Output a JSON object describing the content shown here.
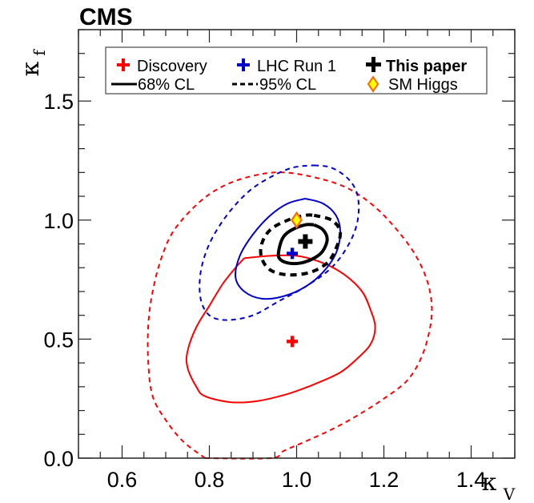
{
  "chart_data": {
    "type": "contour",
    "experiment_label": "CMS",
    "xlabel": "κ",
    "xlabel_sub": "V",
    "ylabel": "κ",
    "ylabel_sub": "f",
    "xlim": [
      0.5,
      1.5
    ],
    "ylim": [
      0.0,
      1.8
    ],
    "x_major_ticks": [
      0.6,
      0.8,
      1.0,
      1.2,
      1.4
    ],
    "x_tick_labels": [
      "0.6",
      "0.8",
      "1.0",
      "1.2",
      "1.4"
    ],
    "x_minor_step": 0.05,
    "y_major_ticks": [
      0.0,
      0.5,
      1.0,
      1.5
    ],
    "y_tick_labels": [
      "0.0",
      "0.5",
      "1.0",
      "1.5"
    ],
    "y_minor_step": 0.1,
    "grid": false,
    "legend": {
      "placement": "top",
      "entries": [
        {
          "label": "Discovery",
          "marker": "cross",
          "color": "#ff0000"
        },
        {
          "label": "LHC Run 1",
          "marker": "cross",
          "color": "#0000cc"
        },
        {
          "label": "This paper",
          "marker": "cross",
          "color": "#000000",
          "bold": true
        },
        {
          "label": "68% CL",
          "line": "solid",
          "color": "#000000"
        },
        {
          "label": "95% CL",
          "line": "dashed",
          "color": "#000000"
        },
        {
          "label": "SM Higgs",
          "marker": "diamond",
          "color": "#ffff00",
          "edge": "#ff6600"
        }
      ]
    },
    "colors": {
      "discovery": "#ff0000",
      "run1": "#0000cc",
      "this_paper": "#000000",
      "sm_fill": "#ffff00",
      "sm_edge": "#ff6600"
    },
    "best_fit": [
      {
        "name": "Discovery",
        "x": 0.99,
        "y": 0.49
      },
      {
        "name": "LHC Run 1",
        "x": 0.99,
        "y": 0.86
      },
      {
        "name": "This paper",
        "x": 1.02,
        "y": 0.91
      }
    ],
    "sm_point": {
      "name": "SM Higgs",
      "x": 1.0,
      "y": 1.0
    },
    "contours": [
      {
        "name": "Discovery 68% CL",
        "series": "discovery",
        "cl": "68%",
        "style": "solid",
        "points": [
          [
            0.88,
            0.84
          ],
          [
            0.94,
            0.85
          ],
          [
            1.0,
            0.85
          ],
          [
            1.06,
            0.82
          ],
          [
            1.11,
            0.77
          ],
          [
            1.15,
            0.7
          ],
          [
            1.17,
            0.62
          ],
          [
            1.18,
            0.55
          ],
          [
            1.17,
            0.48
          ],
          [
            1.14,
            0.42
          ],
          [
            1.1,
            0.36
          ],
          [
            1.04,
            0.31
          ],
          [
            0.98,
            0.27
          ],
          [
            0.91,
            0.24
          ],
          [
            0.85,
            0.235
          ],
          [
            0.79,
            0.26
          ],
          [
            0.77,
            0.3
          ],
          [
            0.75,
            0.38
          ],
          [
            0.75,
            0.45
          ],
          [
            0.77,
            0.55
          ],
          [
            0.8,
            0.64
          ],
          [
            0.83,
            0.73
          ],
          [
            0.86,
            0.8
          ],
          [
            0.88,
            0.84
          ]
        ]
      },
      {
        "name": "Discovery 95% CL",
        "series": "discovery",
        "cl": "95%",
        "style": "dashed",
        "points": [
          [
            0.79,
            0.0
          ],
          [
            0.94,
            0.0
          ],
          [
            0.97,
            0.03
          ],
          [
            1.02,
            0.07
          ],
          [
            1.08,
            0.12
          ],
          [
            1.14,
            0.18
          ],
          [
            1.2,
            0.25
          ],
          [
            1.25,
            0.32
          ],
          [
            1.28,
            0.4
          ],
          [
            1.3,
            0.5
          ],
          [
            1.31,
            0.62
          ],
          [
            1.3,
            0.74
          ],
          [
            1.27,
            0.86
          ],
          [
            1.22,
            0.98
          ],
          [
            1.17,
            1.07
          ],
          [
            1.11,
            1.14
          ],
          [
            1.04,
            1.18
          ],
          [
            0.97,
            1.2
          ],
          [
            0.91,
            1.19
          ],
          [
            0.84,
            1.15
          ],
          [
            0.78,
            1.08
          ],
          [
            0.72,
            0.96
          ],
          [
            0.69,
            0.84
          ],
          [
            0.67,
            0.7
          ],
          [
            0.66,
            0.56
          ],
          [
            0.66,
            0.4
          ],
          [
            0.67,
            0.26
          ],
          [
            0.7,
            0.16
          ],
          [
            0.74,
            0.07
          ],
          [
            0.79,
            0.0
          ]
        ]
      },
      {
        "name": "LHC Run 1 68% CL",
        "series": "run1",
        "cl": "68%",
        "style": "solid",
        "points": [
          [
            1.02,
            1.09
          ],
          [
            1.06,
            1.07
          ],
          [
            1.09,
            1.02
          ],
          [
            1.1,
            0.95
          ],
          [
            1.09,
            0.86
          ],
          [
            1.06,
            0.78
          ],
          [
            1.02,
            0.72
          ],
          [
            0.97,
            0.68
          ],
          [
            0.92,
            0.67
          ],
          [
            0.88,
            0.7
          ],
          [
            0.86,
            0.76
          ],
          [
            0.87,
            0.85
          ],
          [
            0.9,
            0.94
          ],
          [
            0.94,
            1.02
          ],
          [
            0.98,
            1.07
          ],
          [
            1.02,
            1.09
          ]
        ]
      },
      {
        "name": "LHC Run 1 95% CL",
        "series": "run1",
        "cl": "95%",
        "style": "dashed",
        "points": [
          [
            1.04,
            1.23
          ],
          [
            1.08,
            1.22
          ],
          [
            1.12,
            1.17
          ],
          [
            1.14,
            1.1
          ],
          [
            1.14,
            1.0
          ],
          [
            1.12,
            0.9
          ],
          [
            1.08,
            0.8
          ],
          [
            1.02,
            0.72
          ],
          [
            0.96,
            0.66
          ],
          [
            0.9,
            0.6
          ],
          [
            0.84,
            0.58
          ],
          [
            0.8,
            0.6
          ],
          [
            0.78,
            0.67
          ],
          [
            0.78,
            0.78
          ],
          [
            0.8,
            0.9
          ],
          [
            0.84,
            1.02
          ],
          [
            0.89,
            1.12
          ],
          [
            0.94,
            1.18
          ],
          [
            0.99,
            1.22
          ],
          [
            1.04,
            1.23
          ]
        ]
      },
      {
        "name": "This paper 68% CL",
        "series": "this_paper",
        "cl": "68%",
        "style": "solid",
        "points": [
          [
            1.04,
            0.98
          ],
          [
            1.06,
            0.96
          ],
          [
            1.07,
            0.92
          ],
          [
            1.06,
            0.87
          ],
          [
            1.04,
            0.84
          ],
          [
            1.01,
            0.82
          ],
          [
            0.98,
            0.82
          ],
          [
            0.96,
            0.84
          ],
          [
            0.96,
            0.88
          ],
          [
            0.97,
            0.93
          ],
          [
            0.99,
            0.96
          ],
          [
            1.02,
            0.98
          ],
          [
            1.04,
            0.98
          ]
        ]
      },
      {
        "name": "This paper 95% CL",
        "series": "this_paper",
        "cl": "95%",
        "style": "dashed",
        "points": [
          [
            1.04,
            1.02
          ],
          [
            1.08,
            1.0
          ],
          [
            1.1,
            0.95
          ],
          [
            1.09,
            0.88
          ],
          [
            1.07,
            0.82
          ],
          [
            1.03,
            0.78
          ],
          [
            0.98,
            0.77
          ],
          [
            0.94,
            0.79
          ],
          [
            0.92,
            0.84
          ],
          [
            0.92,
            0.9
          ],
          [
            0.94,
            0.96
          ],
          [
            0.98,
            1.0
          ],
          [
            1.02,
            1.02
          ],
          [
            1.04,
            1.02
          ]
        ]
      }
    ]
  }
}
